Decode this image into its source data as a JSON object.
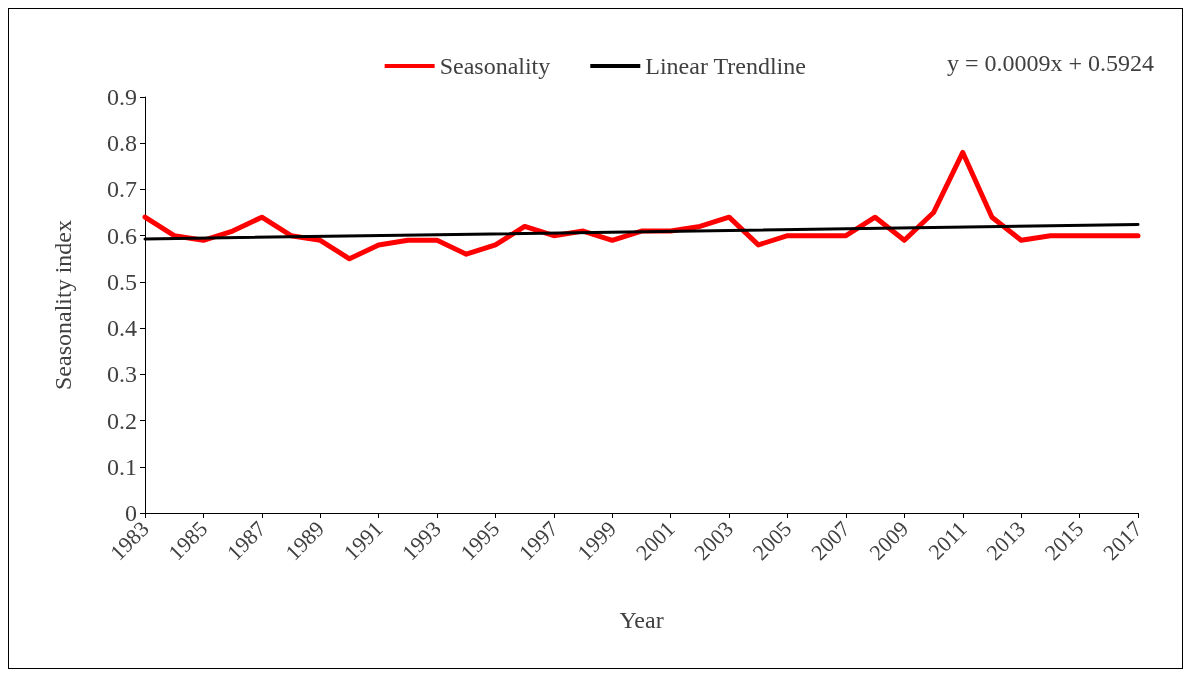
{
  "chart_data": {
    "type": "line",
    "xlabel": "Year",
    "ylabel": "Seasonality index",
    "annotations": [
      "y = 0.0009x + 0.5924"
    ],
    "x": [
      1983,
      1984,
      1985,
      1986,
      1987,
      1988,
      1989,
      1990,
      1991,
      1992,
      1993,
      1994,
      1995,
      1996,
      1997,
      1998,
      1999,
      2000,
      2001,
      2002,
      2003,
      2004,
      2005,
      2006,
      2007,
      2008,
      2009,
      2010,
      2011,
      2012,
      2013,
      2014,
      2015,
      2016,
      2017
    ],
    "series": [
      {
        "name": "Seasonality",
        "color": "#ff0000",
        "values": [
          0.64,
          0.6,
          0.59,
          0.61,
          0.64,
          0.6,
          0.59,
          0.55,
          0.58,
          0.59,
          0.59,
          0.56,
          0.58,
          0.62,
          0.6,
          0.61,
          0.59,
          0.61,
          0.61,
          0.62,
          0.64,
          0.58,
          0.6,
          0.6,
          0.6,
          0.64,
          0.59,
          0.65,
          0.78,
          0.64,
          0.59,
          0.6,
          0.6,
          0.6,
          0.6
        ]
      },
      {
        "name": "Linear Trendline",
        "color": "#000000",
        "x": [
          1983,
          2017
        ],
        "values": [
          0.593,
          0.624
        ]
      }
    ],
    "xlim": [
      1983,
      2017
    ],
    "xticks": [
      1983,
      1985,
      1987,
      1989,
      1991,
      1993,
      1995,
      1997,
      1999,
      2001,
      2003,
      2005,
      2007,
      2009,
      2011,
      2013,
      2015,
      2017
    ],
    "ylim": [
      0,
      0.9
    ],
    "yticks": [
      0,
      0.1,
      0.2,
      0.3,
      0.4,
      0.5,
      0.6,
      0.7,
      0.8,
      0.9
    ],
    "grid": false,
    "legend": "top",
    "marker": "none",
    "line_style": "solid"
  }
}
